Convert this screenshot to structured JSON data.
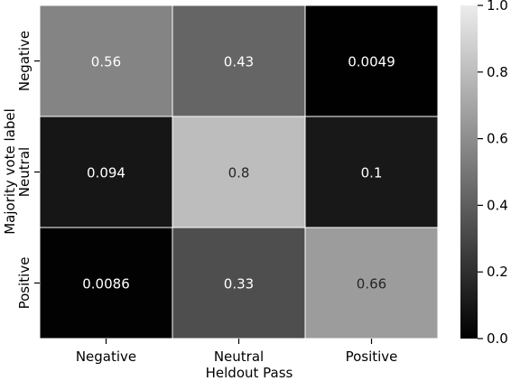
{
  "chart_data": {
    "type": "heatmap",
    "title": "",
    "xlabel": "Heldout Pass",
    "ylabel": "Majority vote label",
    "x_categories": [
      "Negative",
      "Neutral",
      "Positive"
    ],
    "y_categories": [
      "Negative",
      "Neutral",
      "Positive"
    ],
    "values": [
      [
        0.56,
        0.43,
        0.0049
      ],
      [
        0.094,
        0.8,
        0.1
      ],
      [
        0.0086,
        0.33,
        0.66
      ]
    ],
    "value_labels": [
      [
        "0.56",
        "0.43",
        "0.0049"
      ],
      [
        "0.094",
        "0.8",
        "0.1"
      ],
      [
        "0.0086",
        "0.33",
        "0.66"
      ]
    ],
    "colorbar": {
      "range": [
        0.0,
        1.0
      ],
      "ticks": [
        0.0,
        0.2,
        0.4,
        0.6,
        0.8,
        1.0
      ],
      "tick_labels": [
        "0.0",
        "0.2",
        "0.4",
        "0.6",
        "0.8",
        "1.0"
      ],
      "colormap": "grayscale (black = 0, white = 1)"
    },
    "grid": true
  }
}
